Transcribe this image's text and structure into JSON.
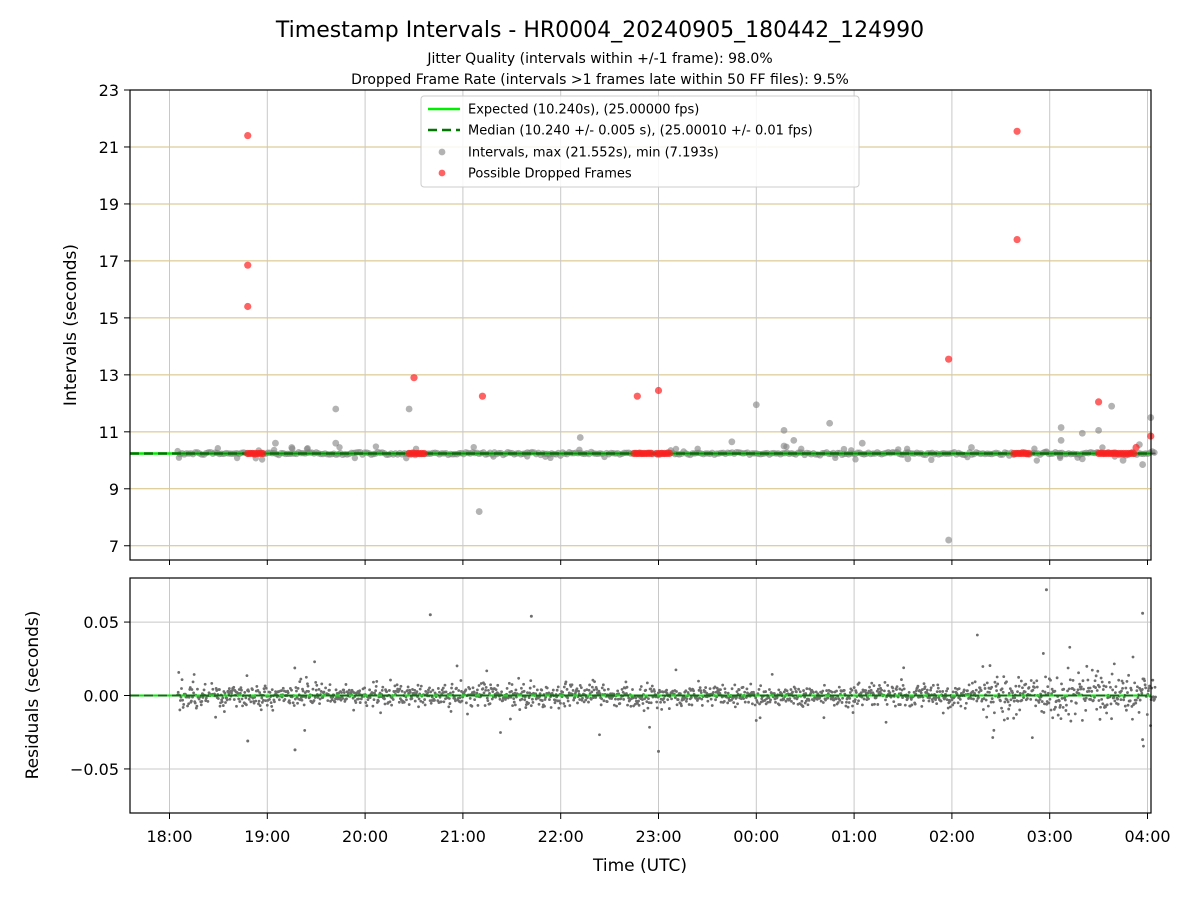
{
  "title": "Timestamp Intervals - HR0004_20240905_180442_124990",
  "subtitle_1": "Jitter Quality (intervals within +/-1 frame): 98.0%",
  "subtitle_2": "Dropped Frame Rate (intervals >1 frames late within 50 FF files): 9.5%",
  "colors": {
    "expected": "#00ee00",
    "median": "#007700",
    "intervals": "#808080",
    "dropped": "#ff2020",
    "hgrid_top": "#d4bf7c",
    "grid": "#c8c8c8"
  },
  "chart_data": [
    {
      "type": "scatter",
      "ylabel": "Intervals (seconds)",
      "ylim": [
        6.5,
        23
      ],
      "yticks": [
        "7",
        "9",
        "11",
        "13",
        "15",
        "17",
        "19",
        "21",
        "23"
      ],
      "grid": true,
      "legend_position": "upper-center",
      "legend": [
        "Expected (10.240s), (25.00000 fps)",
        "Median (10.240 +/- 0.005 s), (25.00010 +/- 0.01 fps)",
        "Intervals, max (21.552s), min (7.193s)",
        "Possible Dropped Frames"
      ],
      "expected_value": 10.24,
      "median_value": 10.24,
      "baseline_range": [
        "18:05",
        "04:05"
      ],
      "interval_outliers": [
        [
          "19:05",
          10.6
        ],
        [
          "19:15",
          10.45
        ],
        [
          "19:42",
          11.8
        ],
        [
          "19:42",
          10.6
        ],
        [
          "20:27",
          11.8
        ],
        [
          "21:10",
          8.2
        ],
        [
          "22:12",
          10.8
        ],
        [
          "23:45",
          10.65
        ],
        [
          "00:00",
          11.95
        ],
        [
          "00:17",
          11.05
        ],
        [
          "00:17",
          10.5
        ],
        [
          "00:23",
          10.7
        ],
        [
          "00:45",
          11.3
        ],
        [
          "01:05",
          10.6
        ],
        [
          "01:33",
          10.05
        ],
        [
          "01:58",
          7.2
        ],
        [
          "02:12",
          10.45
        ],
        [
          "02:58",
          10.3
        ],
        [
          "03:07",
          11.15
        ],
        [
          "03:07",
          10.7
        ],
        [
          "03:20",
          10.95
        ],
        [
          "03:20",
          10.05
        ],
        [
          "03:30",
          11.05
        ],
        [
          "03:38",
          11.9
        ],
        [
          "03:45",
          10.0
        ],
        [
          "03:55",
          10.55
        ],
        [
          "03:57",
          9.85
        ],
        [
          "04:02",
          11.5
        ]
      ],
      "dropped_frames": [
        [
          "18:48",
          21.4
        ],
        [
          "18:48",
          16.85
        ],
        [
          "18:48",
          15.4
        ],
        [
          "20:30",
          12.9
        ],
        [
          "21:12",
          12.25
        ],
        [
          "22:47",
          12.25
        ],
        [
          "23:00",
          12.45
        ],
        [
          "01:58",
          13.55
        ],
        [
          "02:40",
          21.55
        ],
        [
          "02:40",
          17.75
        ],
        [
          "03:30",
          12.05
        ],
        [
          "04:02",
          10.85
        ],
        [
          "03:53",
          10.45
        ]
      ],
      "dropped_clusters": [
        [
          "18:48",
          "18:58"
        ],
        [
          "20:27",
          "20:37"
        ],
        [
          "22:45",
          "22:57"
        ],
        [
          "22:59",
          "23:08"
        ],
        [
          "02:38",
          "02:48"
        ],
        [
          "03:30",
          "03:53"
        ]
      ]
    },
    {
      "type": "scatter",
      "xlabel": "Time (UTC)",
      "ylabel": "Residuals (seconds)",
      "ylim": [
        -0.08,
        0.08
      ],
      "yticks": [
        "−0.05",
        "0.00",
        "0.05"
      ],
      "xticks": [
        "18:00",
        "19:00",
        "20:00",
        "21:00",
        "22:00",
        "23:00",
        "00:00",
        "01:00",
        "02:00",
        "03:00",
        "04:00"
      ],
      "grid": true,
      "residual_outliers": [
        [
          "20:40",
          0.055
        ],
        [
          "21:42",
          0.054
        ],
        [
          "02:58",
          0.072
        ],
        [
          "03:57",
          0.056
        ],
        [
          "19:17",
          -0.037
        ],
        [
          "23:00",
          -0.038
        ],
        [
          "03:57",
          -0.03
        ],
        [
          "18:48",
          -0.031
        ]
      ]
    }
  ]
}
